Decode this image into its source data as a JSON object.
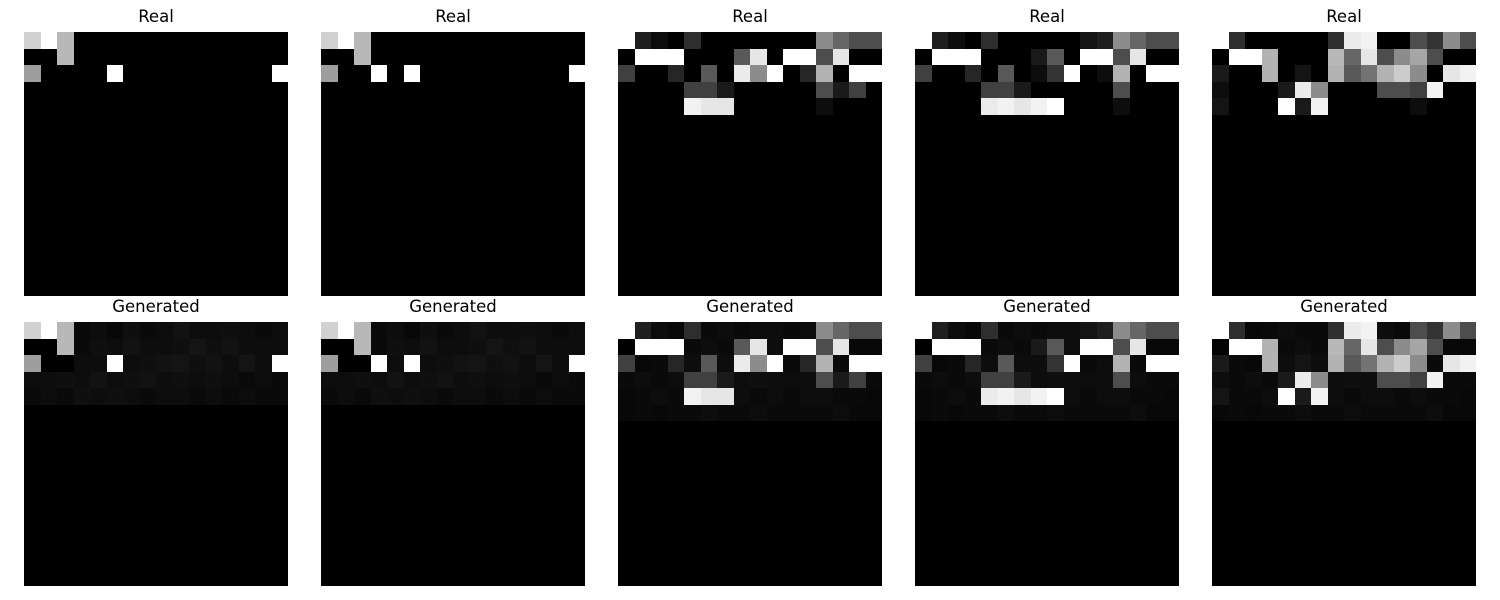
{
  "panels": [
    {
      "title": "Real",
      "pixels": [
        [
          0.82,
          1.0,
          0.72,
          0,
          0,
          0,
          0,
          0,
          0,
          0,
          0,
          0,
          0,
          0,
          0,
          0
        ],
        [
          0,
          0,
          0.72,
          0,
          0,
          0,
          0,
          0,
          0,
          0,
          0,
          0,
          0,
          0,
          0,
          0
        ],
        [
          0.62,
          0,
          0,
          0,
          0,
          1.0,
          0,
          0,
          0,
          0,
          0,
          0,
          0,
          0,
          0,
          1.0
        ]
      ]
    },
    {
      "title": "Real",
      "pixels": [
        [
          0.82,
          1.0,
          0.72,
          0,
          0,
          0,
          0,
          0,
          0,
          0,
          0,
          0,
          0,
          0,
          0,
          0
        ],
        [
          0,
          0,
          0.72,
          0,
          0,
          0,
          0,
          0,
          0,
          0,
          0,
          0,
          0,
          0,
          0,
          0
        ],
        [
          0.62,
          0,
          0,
          1.0,
          0,
          1.0,
          0,
          0,
          0,
          0,
          0,
          0,
          0,
          0,
          0,
          1.0
        ]
      ]
    },
    {
      "title": "Real",
      "pixels": [
        [
          1.0,
          0.12,
          0.05,
          0,
          0.18,
          0,
          0,
          0,
          0,
          0,
          0,
          0,
          0.55,
          0.4,
          0.3,
          0.3
        ],
        [
          0,
          1.0,
          1.0,
          1.0,
          0,
          0,
          0,
          0.35,
          0.9,
          0,
          1.0,
          1.0,
          0.3,
          0.9,
          0,
          0
        ],
        [
          0.25,
          0,
          0,
          0.15,
          0,
          0.35,
          0,
          0.92,
          0.55,
          1.0,
          0,
          0.15,
          0.7,
          0,
          1.0,
          1.0
        ],
        [
          0,
          0,
          0,
          0,
          0.25,
          0.25,
          0.1,
          0,
          0,
          0,
          0,
          0,
          0.3,
          0.1,
          0.25,
          0
        ],
        [
          0,
          0,
          0,
          0,
          0.95,
          0.9,
          0.9,
          0,
          0,
          0,
          0,
          0,
          0.05,
          0,
          0,
          0
        ]
      ]
    },
    {
      "title": "Real",
      "pixels": [
        [
          1.0,
          0.12,
          0.05,
          0,
          0.18,
          0,
          0,
          0,
          0,
          0,
          0.08,
          0.12,
          0.55,
          0.4,
          0.3,
          0.3
        ],
        [
          0,
          1.0,
          1.0,
          1.0,
          0,
          0,
          0,
          0.1,
          0.35,
          0,
          1.0,
          1.0,
          0.3,
          0.9,
          0,
          0
        ],
        [
          0.25,
          0,
          0,
          0.15,
          0,
          0.35,
          0,
          0.05,
          0.2,
          1.0,
          0,
          0.05,
          0.7,
          0,
          1.0,
          1.0
        ],
        [
          0,
          0,
          0,
          0,
          0.25,
          0.25,
          0.1,
          0,
          0,
          0,
          0,
          0,
          0.3,
          0,
          0,
          0
        ],
        [
          0,
          0,
          0,
          0,
          0.92,
          0.95,
          0.9,
          0.95,
          1.0,
          0,
          0,
          0,
          0.05,
          0,
          0,
          0
        ]
      ]
    },
    {
      "title": "Real",
      "pixels": [
        [
          1.0,
          0.18,
          0,
          0,
          0,
          0,
          0,
          0.18,
          0.92,
          0.95,
          0,
          0,
          0.3,
          0.2,
          0.55,
          0.3
        ],
        [
          0,
          1.0,
          1.0,
          0.7,
          0,
          0,
          0,
          0.72,
          0.4,
          0.9,
          0.3,
          0.55,
          0.65,
          0.3,
          0,
          0
        ],
        [
          0.1,
          0,
          0,
          0.7,
          0,
          0.08,
          0,
          0.7,
          0.35,
          0.45,
          0.7,
          0.8,
          0.55,
          0,
          0.9,
          0.95
        ],
        [
          0.05,
          0,
          0,
          0,
          0.1,
          0.92,
          0.55,
          0,
          0,
          0,
          0.3,
          0.3,
          0.25,
          0.95,
          0,
          0
        ],
        [
          0.08,
          0,
          0,
          0,
          1.0,
          0.1,
          0.95,
          0,
          0,
          0,
          0,
          0,
          0.05,
          0,
          0,
          0
        ]
      ]
    },
    {
      "title": "Generated",
      "pixels": [
        [
          0.82,
          1.0,
          0.72,
          0.04,
          0.05,
          0.03,
          0.06,
          0.04,
          0.05,
          0.07,
          0.05,
          0.05,
          0.06,
          0.05,
          0.04,
          0.05
        ],
        [
          0,
          0,
          0.72,
          0.04,
          0.06,
          0.05,
          0.07,
          0.05,
          0.05,
          0.06,
          0.08,
          0.06,
          0.07,
          0.05,
          0.05,
          0.05
        ],
        [
          0.62,
          0,
          0,
          0.05,
          0.05,
          1.0,
          0.05,
          0.06,
          0.07,
          0.08,
          0.06,
          0.07,
          0.05,
          0.08,
          0.05,
          1.0
        ],
        [
          0.05,
          0.05,
          0.06,
          0.05,
          0.07,
          0.05,
          0.06,
          0.07,
          0.05,
          0.06,
          0.05,
          0.06,
          0.05,
          0.04,
          0.05,
          0.04
        ],
        [
          0.04,
          0.05,
          0.04,
          0.06,
          0.05,
          0.06,
          0.05,
          0.04,
          0.05,
          0.05,
          0.04,
          0.05,
          0.04,
          0.05,
          0.04,
          0.04
        ]
      ]
    },
    {
      "title": "Generated",
      "pixels": [
        [
          0.82,
          1.0,
          0.72,
          0.04,
          0.05,
          0.03,
          0.06,
          0.04,
          0.05,
          0.07,
          0.05,
          0.05,
          0.06,
          0.05,
          0.04,
          0.05
        ],
        [
          0,
          0,
          0.72,
          0.04,
          0.06,
          0.05,
          0.07,
          0.05,
          0.05,
          0.06,
          0.08,
          0.06,
          0.07,
          0.05,
          0.05,
          0.05
        ],
        [
          0.62,
          0,
          0,
          1.0,
          0.05,
          1.0,
          0.05,
          0.06,
          0.07,
          0.08,
          0.06,
          0.07,
          0.05,
          0.08,
          0.05,
          1.0
        ],
        [
          0.05,
          0.05,
          0.06,
          0.05,
          0.07,
          0.05,
          0.06,
          0.07,
          0.05,
          0.06,
          0.05,
          0.06,
          0.05,
          0.04,
          0.05,
          0.04
        ],
        [
          0.04,
          0.05,
          0.04,
          0.06,
          0.05,
          0.06,
          0.05,
          0.04,
          0.05,
          0.05,
          0.04,
          0.05,
          0.04,
          0.05,
          0.04,
          0.04
        ]
      ]
    },
    {
      "title": "Generated",
      "pixels": [
        [
          1.0,
          0.12,
          0.05,
          0.03,
          0.18,
          0.04,
          0.05,
          0.04,
          0.05,
          0.05,
          0.04,
          0.05,
          0.55,
          0.4,
          0.3,
          0.3
        ],
        [
          0,
          1.0,
          1.0,
          1.0,
          0.04,
          0.05,
          0.04,
          0.35,
          0.9,
          0.05,
          1.0,
          1.0,
          0.3,
          0.9,
          0.03,
          0.03
        ],
        [
          0.25,
          0.03,
          0.04,
          0.15,
          0.05,
          0.35,
          0.05,
          0.92,
          0.55,
          1.0,
          0.04,
          0.15,
          0.7,
          0.04,
          1.0,
          1.0
        ],
        [
          0.04,
          0.05,
          0.04,
          0.05,
          0.25,
          0.25,
          0.1,
          0.05,
          0.06,
          0.05,
          0.05,
          0.05,
          0.3,
          0.1,
          0.25,
          0.04
        ],
        [
          0.03,
          0.04,
          0.05,
          0.04,
          0.95,
          0.9,
          0.9,
          0.05,
          0.04,
          0.05,
          0.04,
          0.05,
          0.05,
          0.04,
          0.04,
          0.03
        ],
        [
          0.03,
          0.04,
          0.03,
          0.04,
          0.04,
          0.05,
          0.04,
          0.04,
          0.05,
          0.04,
          0.04,
          0.04,
          0.04,
          0.05,
          0.03,
          0.03
        ]
      ]
    },
    {
      "title": "Generated",
      "pixels": [
        [
          1.0,
          0.12,
          0.05,
          0.03,
          0.18,
          0.04,
          0.05,
          0.04,
          0.05,
          0.05,
          0.08,
          0.12,
          0.55,
          0.4,
          0.3,
          0.3
        ],
        [
          0,
          1.0,
          1.0,
          1.0,
          0.04,
          0.05,
          0.04,
          0.1,
          0.35,
          0.05,
          1.0,
          1.0,
          0.3,
          0.9,
          0.03,
          0.03
        ],
        [
          0.25,
          0.03,
          0.04,
          0.15,
          0.05,
          0.35,
          0.05,
          0.05,
          0.2,
          1.0,
          0.04,
          0.05,
          0.7,
          0.04,
          1.0,
          1.0
        ],
        [
          0.04,
          0.05,
          0.04,
          0.05,
          0.25,
          0.25,
          0.1,
          0.05,
          0.06,
          0.05,
          0.05,
          0.05,
          0.3,
          0.05,
          0.04,
          0.04
        ],
        [
          0.03,
          0.04,
          0.05,
          0.04,
          0.92,
          0.95,
          0.9,
          0.95,
          1.0,
          0.05,
          0.04,
          0.05,
          0.05,
          0.04,
          0.04,
          0.03
        ],
        [
          0.03,
          0.04,
          0.03,
          0.04,
          0.04,
          0.05,
          0.04,
          0.04,
          0.05,
          0.04,
          0.04,
          0.04,
          0.04,
          0.05,
          0.03,
          0.03
        ]
      ]
    },
    {
      "title": "Generated",
      "pixels": [
        [
          1.0,
          0.18,
          0.03,
          0.04,
          0.05,
          0.04,
          0.04,
          0.18,
          0.92,
          0.95,
          0.05,
          0.04,
          0.3,
          0.2,
          0.55,
          0.3
        ],
        [
          0.02,
          1.0,
          1.0,
          0.7,
          0.04,
          0.05,
          0.04,
          0.72,
          0.4,
          0.9,
          0.3,
          0.55,
          0.65,
          0.3,
          0.03,
          0.03
        ],
        [
          0.1,
          0.04,
          0.03,
          0.7,
          0.05,
          0.08,
          0.05,
          0.7,
          0.35,
          0.45,
          0.7,
          0.8,
          0.55,
          0.04,
          0.9,
          0.95
        ],
        [
          0.05,
          0.04,
          0.05,
          0.04,
          0.1,
          0.92,
          0.55,
          0.05,
          0.06,
          0.05,
          0.3,
          0.3,
          0.25,
          0.95,
          0.04,
          0.04
        ],
        [
          0.08,
          0.04,
          0.04,
          0.05,
          1.0,
          0.1,
          0.95,
          0.05,
          0.04,
          0.05,
          0.05,
          0.04,
          0.05,
          0.04,
          0.04,
          0.03
        ],
        [
          0.03,
          0.04,
          0.03,
          0.04,
          0.04,
          0.05,
          0.04,
          0.04,
          0.05,
          0.04,
          0.04,
          0.04,
          0.04,
          0.05,
          0.03,
          0.03
        ]
      ]
    }
  ]
}
